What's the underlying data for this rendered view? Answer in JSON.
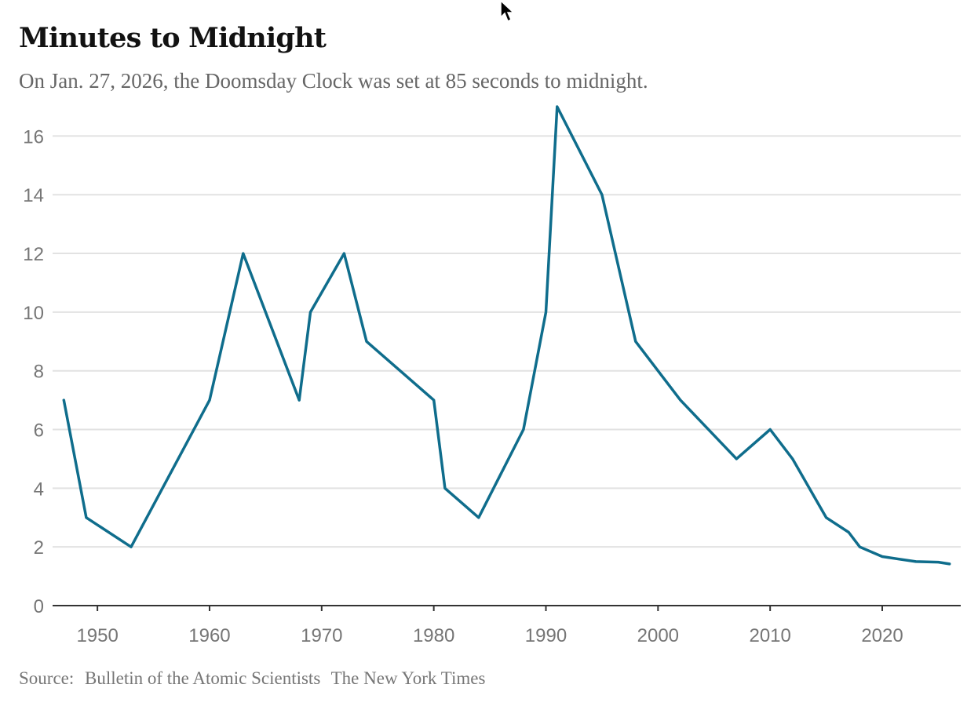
{
  "header": {
    "title": "Minutes to Midnight",
    "subtitle": "On Jan. 27, 2026, the Doomsday Clock was set at 85 seconds to midnight."
  },
  "footer": {
    "source_label": "Source:",
    "source_name": "Bulletin of the Atomic Scientists",
    "credit": "The New York Times"
  },
  "colors": {
    "line": "#0f6d8c",
    "grid": "#e2e2e2",
    "axis": "#333333",
    "text_muted": "#767676"
  },
  "chart_data": {
    "type": "line",
    "title": "Minutes to Midnight",
    "subtitle": "On Jan. 27, 2026, the Doomsday Clock was set at 85 seconds to midnight.",
    "xlabel": "",
    "ylabel": "",
    "xlim": [
      1946,
      2027
    ],
    "ylim": [
      0,
      17
    ],
    "xticks": [
      1950,
      1960,
      1970,
      1980,
      1990,
      2000,
      2010,
      2020
    ],
    "yticks": [
      0,
      2,
      4,
      6,
      8,
      10,
      12,
      14,
      16
    ],
    "grid": "horizontal",
    "series": [
      {
        "x": [
          1947,
          1949,
          1953,
          1960,
          1963,
          1968,
          1969,
          1972,
          1974,
          1980,
          1981,
          1984,
          1988,
          1990,
          1991,
          1995,
          1998,
          2002,
          2007,
          2010,
          2012,
          2015,
          2017,
          2018,
          2020,
          2023,
          2025,
          2026
        ],
        "y": [
          7,
          3,
          2,
          7,
          12,
          7,
          10,
          12,
          9,
          7,
          4,
          3,
          6,
          10,
          17,
          14,
          9,
          7,
          5,
          6,
          5,
          3,
          2.5,
          2,
          1.67,
          1.5,
          1.48,
          1.42
        ]
      }
    ]
  }
}
